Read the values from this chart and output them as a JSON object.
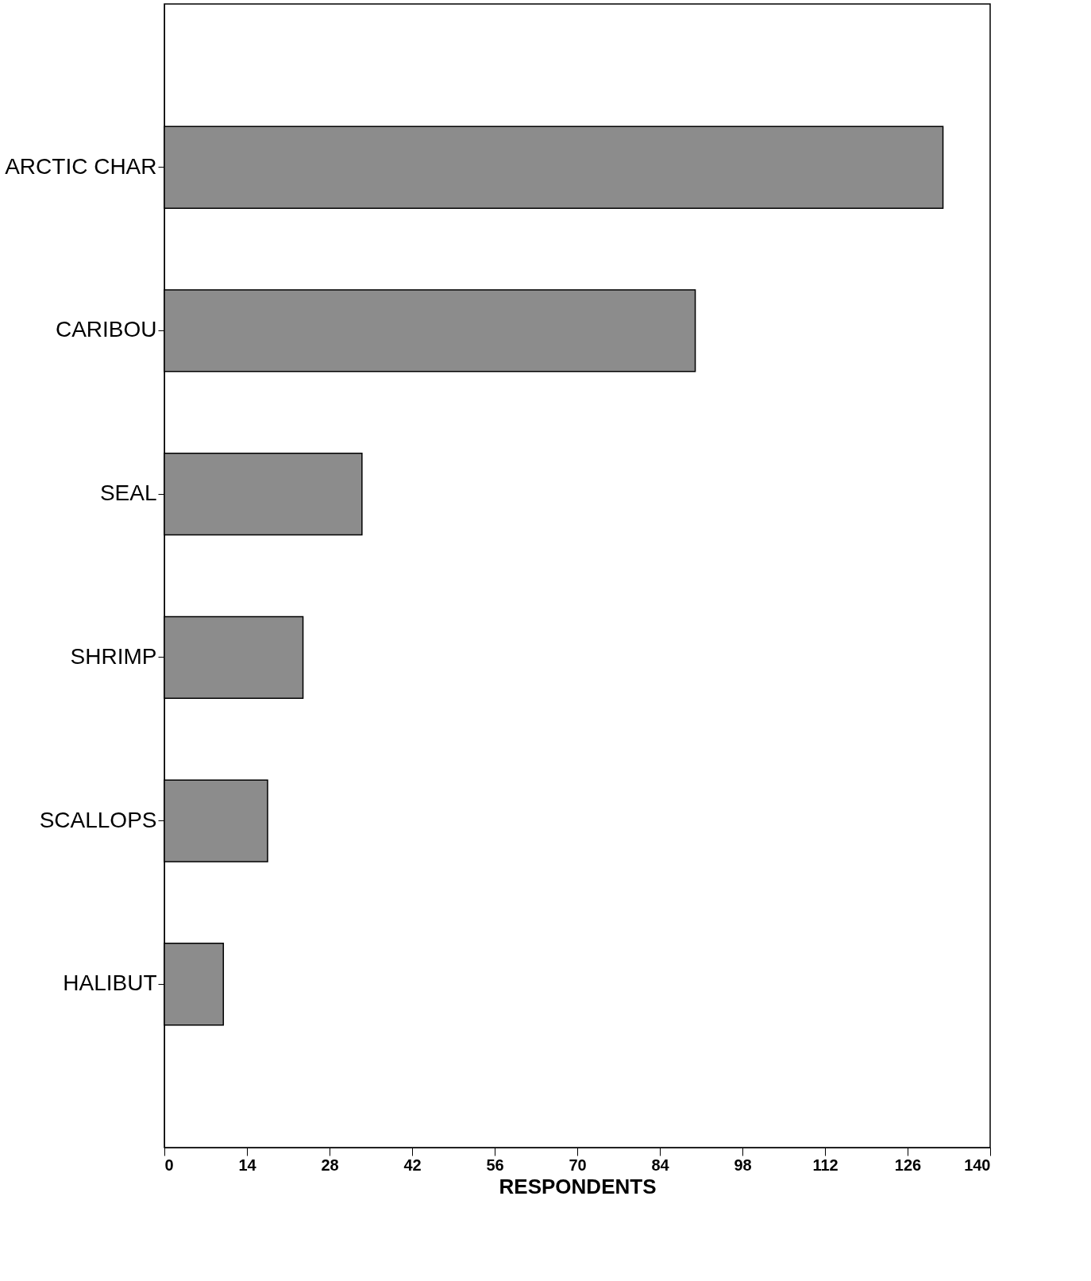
{
  "chart_data": {
    "type": "bar",
    "orientation": "horizontal",
    "xlabel": "RESPONDENTS",
    "categories": [
      "ARCTIC CHAR",
      "CARIBOU",
      "SEAL",
      "SHRIMP",
      "SCALLOPS",
      "HALIBUT"
    ],
    "values": [
      132,
      90,
      33.5,
      23.5,
      17.5,
      10
    ],
    "color": "#8c8c8c",
    "xlim": [
      0,
      140
    ],
    "xticks": [
      0,
      14,
      28,
      42,
      56,
      70,
      84,
      98,
      112,
      126,
      140
    ],
    "grid": false
  }
}
